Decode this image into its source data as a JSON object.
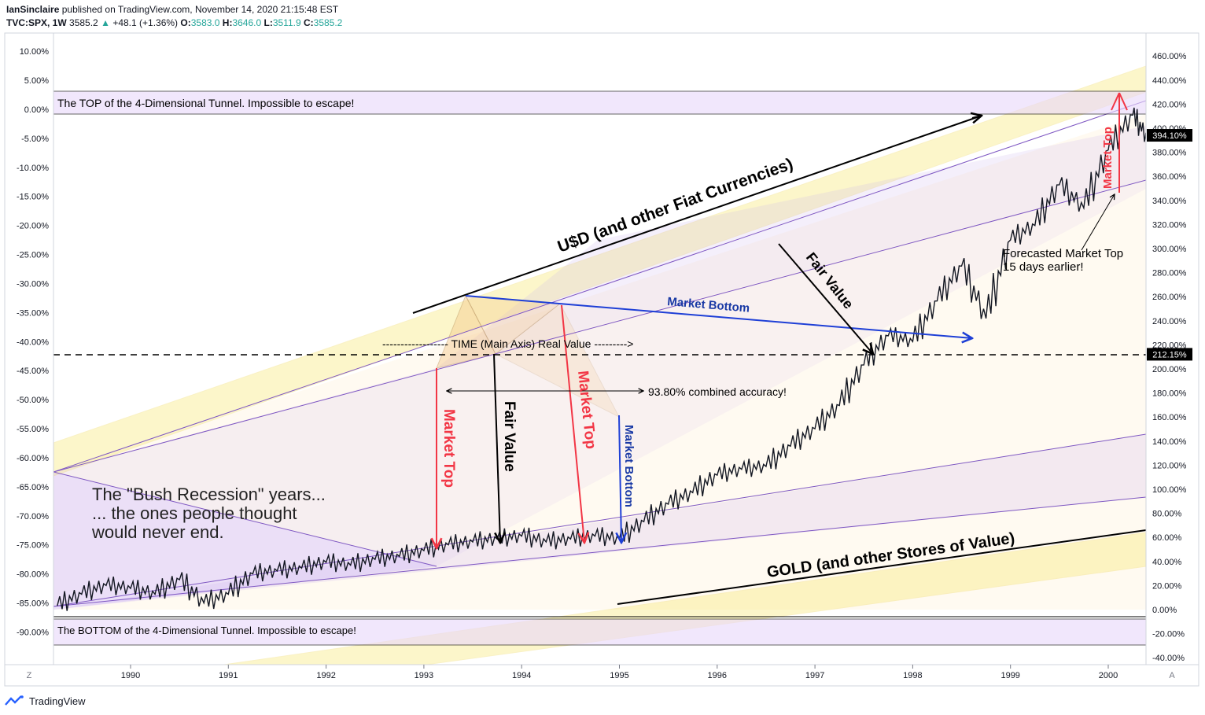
{
  "header": {
    "author": "IanSinclaire",
    "published": "published on TradingView.com, November 14, 2020 21:15:48 EST",
    "symbol": "TVC:SPX, 1W",
    "last": "3585.2",
    "change_arrow": "▲",
    "change": "+48.1 (+1.36%)",
    "o_label": "O:",
    "o_val": "3583.0",
    "h_label": "H:",
    "h_val": "3646.0",
    "l_label": "L:",
    "l_val": "3511.9",
    "c_label": "C:",
    "c_val": "3585.2"
  },
  "footer": {
    "brand": "TradingView"
  },
  "corner_left": "Z",
  "corner_right": "A",
  "chart_data": {
    "type": "line",
    "title": "",
    "x_ticks": [
      "1990",
      "1991",
      "1992",
      "1993",
      "1994",
      "1995",
      "1996",
      "1997",
      "1998",
      "1999",
      "2000"
    ],
    "left_axis": {
      "ticks": [
        "10.00%",
        "5.00%",
        "0.00%",
        "-5.00%",
        "-10.00%",
        "-15.00%",
        "-20.00%",
        "-25.00%",
        "-30.00%",
        "-35.00%",
        "-40.00%",
        "-45.00%",
        "-50.00%",
        "-55.00%",
        "-60.00%",
        "-65.00%",
        "-70.00%",
        "-75.00%",
        "-80.00%",
        "-85.00%",
        "-90.00%"
      ],
      "range": [
        -90,
        10
      ]
    },
    "right_axis": {
      "ticks": [
        "460.00%",
        "440.00%",
        "420.00%",
        "400.00%",
        "380.00%",
        "360.00%",
        "340.00%",
        "320.00%",
        "300.00%",
        "280.00%",
        "260.00%",
        "240.00%",
        "220.00%",
        "200.00%",
        "180.00%",
        "160.00%",
        "140.00%",
        "120.00%",
        "100.00%",
        "80.00%",
        "60.00%",
        "40.00%",
        "20.00%",
        "0.00%",
        "-20.00%",
        "-40.00%"
      ],
      "range": [
        -40,
        460
      ],
      "badges": [
        {
          "text": "394.10%",
          "value": 394.1,
          "bg": "#000000"
        },
        {
          "text": "212.15%",
          "value": 212.15,
          "bg": "#000000"
        }
      ]
    },
    "series": [
      {
        "x": [
          1989.25,
          1989.5,
          1989.75,
          1990.0,
          1990.25,
          1990.5,
          1990.75,
          1991.0,
          1991.25,
          1991.5,
          1991.75,
          1992.0,
          1992.25,
          1992.5,
          1992.75,
          1993.0,
          1993.25,
          1993.5,
          1993.75,
          1994.0,
          1994.25,
          1994.5,
          1994.75,
          1995.0,
          1995.25,
          1995.5,
          1995.75,
          1996.0,
          1996.25,
          1996.5,
          1996.75,
          1997.0,
          1997.25,
          1997.5,
          1997.75,
          1998.0,
          1998.25,
          1998.5,
          1998.75,
          1999.0,
          1999.25,
          1999.5,
          1999.75,
          2000.0,
          2000.25,
          2000.4
        ],
        "y": [
          -85.5,
          -83.5,
          -82.0,
          -82.5,
          -83.5,
          -81.0,
          -85.0,
          -83.5,
          -80.0,
          -79.5,
          -79.0,
          -78.0,
          -78.5,
          -77.5,
          -77.0,
          -76.0,
          -75.0,
          -74.5,
          -74.0,
          -73.5,
          -74.5,
          -74.0,
          -73.5,
          -74.0,
          -71.0,
          -68.0,
          -66.0,
          -63.0,
          -62.0,
          -61.5,
          -58.0,
          -55.0,
          -51.0,
          -44.0,
          -39.0,
          -40.0,
          -33.0,
          -27.0,
          -36.0,
          -22.5,
          -20.0,
          -13.0,
          -17.0,
          -7.0,
          -1.0,
          -5.0
        ]
      }
    ],
    "annotations": {
      "top_box": "The TOP of the 4-Dimensional Tunnel. Impossible to escape!",
      "bottom_box": "The BOTTOM of the 4-Dimensional Tunnel. Impossible to escape!",
      "usd": "U$D (and other Fiat Currencies)",
      "gold": "GOLD (and other Stores of Value)",
      "time_axis": "------------------ TIME (Main Axis) Real Value --------->",
      "accuracy": "93.80% combined accuracy!",
      "market_bottom_blue": "Market Bottom",
      "market_bottom_vertical": "Market Bottom",
      "fair_value_diag": "Fair Value",
      "fair_value_vertical": "Fair Value",
      "market_top_1": "Market Top",
      "market_top_2": "Market Top",
      "market_top_3": "Market Top",
      "forecast_line1": "Forecasted Market Top",
      "forecast_line2": "15 days earlier!",
      "bush_line1": "The \"Bush Recession\" years...",
      "bush_line2": "... the ones people thought",
      "bush_line3": "would never end."
    },
    "colors": {
      "band_yellow": "#f7e76a",
      "band_purple": "#cfb6ee",
      "channel_line": "#7e57c2",
      "arrow_red": "#f23645",
      "arrow_blue": "#1e3fd6",
      "text_blue": "#1a3aa5",
      "price": "#131722"
    }
  }
}
